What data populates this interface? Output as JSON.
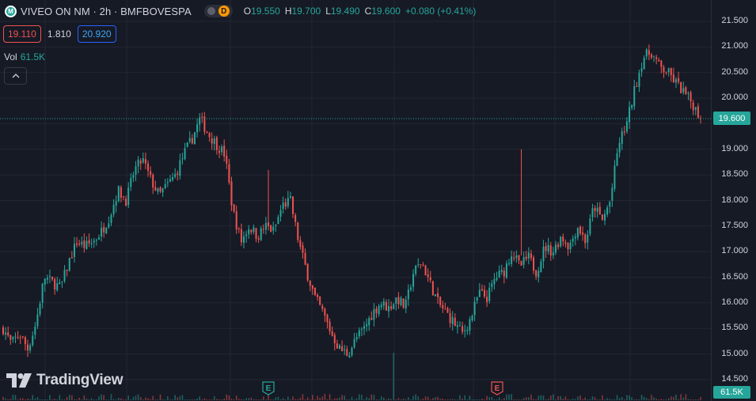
{
  "header": {
    "icon_letter": "M",
    "title": "VIVEO ON NM · 2h · BMFBOVESPA",
    "flag_letter": "D",
    "ohlc": [
      {
        "key": "O",
        "value": "19.550"
      },
      {
        "key": "H",
        "value": "19.700"
      },
      {
        "key": "L",
        "value": "19.490"
      },
      {
        "key": "C",
        "value": "19.600"
      },
      {
        "key": "",
        "value": "+0.080 (+0.41%)"
      }
    ]
  },
  "trade": {
    "sell": "19.110",
    "spread": "1.810",
    "buy": "20.920"
  },
  "volume_legend": {
    "label": "Vol",
    "value": "61.5K"
  },
  "collapse_icon": "chevron-up-icon",
  "price_tag": "19.600",
  "volume_tag": "61.5K",
  "branding": "TradingView",
  "markers": [
    {
      "letter": "E",
      "color": "#26a69a"
    },
    {
      "letter": "E",
      "color": "#ef5350"
    }
  ],
  "colors": {
    "up": "#26a69a",
    "down": "#ef5350",
    "background": "#161a25",
    "grid": "#242733"
  },
  "chart_data": {
    "type": "candlestick",
    "symbol": "VIVEO ON NM",
    "interval": "2h",
    "exchange": "BMFBOVESPA",
    "ylim": [
      14.5,
      21.5
    ],
    "y_ticks": [
      "21.500",
      "21.000",
      "20.500",
      "20.000",
      "19.500",
      "19.000",
      "18.500",
      "18.000",
      "17.500",
      "17.000",
      "16.500",
      "16.000",
      "15.500",
      "15.000",
      "14.500"
    ],
    "last_price": 19.6,
    "close_path": [
      15.5,
      15.2,
      15.4,
      15.1,
      15.6,
      16.5,
      16.4,
      16.3,
      16.8,
      17.2,
      17.1,
      17.2,
      17.4,
      17.7,
      18.2,
      18.0,
      18.6,
      18.8,
      18.4,
      18.1,
      18.3,
      18.5,
      18.9,
      19.2,
      19.6,
      19.3,
      19.1,
      18.9,
      17.8,
      17.2,
      17.5,
      17.3,
      17.5,
      17.4,
      17.9,
      18.0,
      17.2,
      16.6,
      16.1,
      15.8,
      15.4,
      15.1,
      15.0,
      15.3,
      15.5,
      15.8,
      16.0,
      15.9,
      16.1,
      15.9,
      16.6,
      16.8,
      16.4,
      16.0,
      15.8,
      15.6,
      15.4,
      15.7,
      16.2,
      16.1,
      16.5,
      16.6,
      17.0,
      16.7,
      16.9,
      16.6,
      17.1,
      17.0,
      17.3,
      17.1,
      17.5,
      17.2,
      17.9,
      17.6,
      18.0,
      19.1,
      19.5,
      20.2,
      20.8,
      20.9,
      20.6,
      20.5,
      20.3,
      20.1,
      19.9,
      19.6
    ],
    "volume_last": "61.5K",
    "events": [
      {
        "letter": "E",
        "kind": "earnings-past"
      },
      {
        "letter": "E",
        "kind": "earnings-upcoming"
      }
    ]
  }
}
